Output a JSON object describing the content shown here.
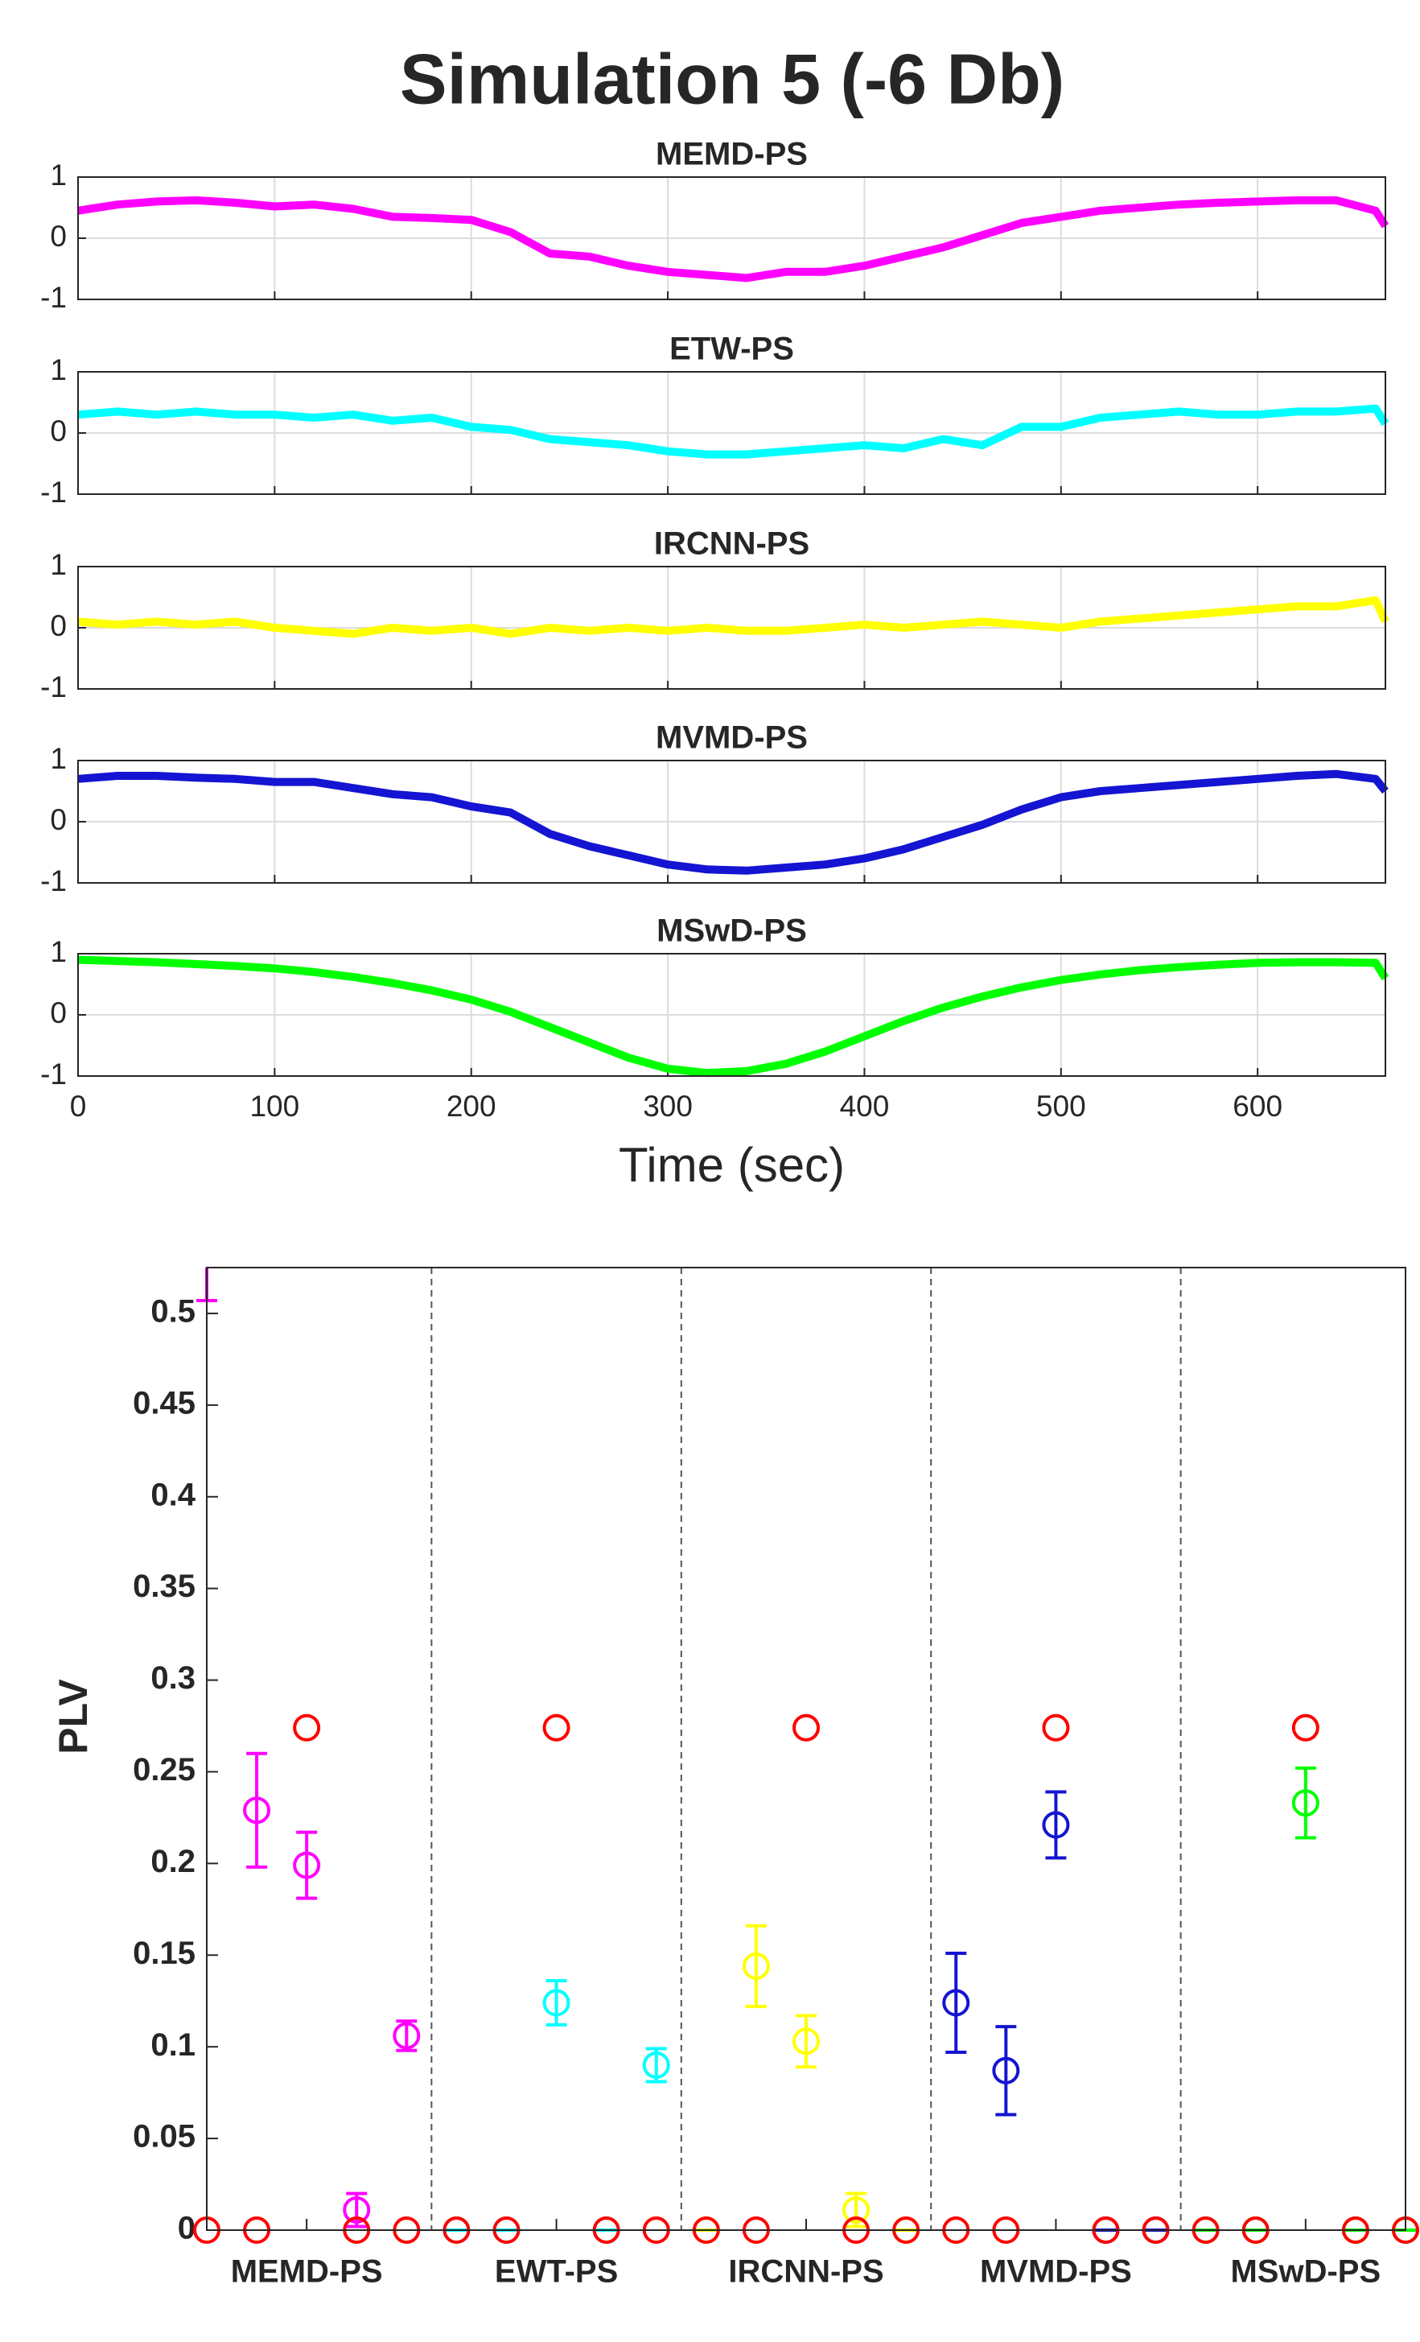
{
  "title": "Simulation 5 (-6 Db)",
  "chart_data": [
    {
      "type": "line",
      "title": "MEMD-PS",
      "xlim": [
        0,
        665
      ],
      "xticks": [
        0,
        100,
        200,
        300,
        400,
        500,
        600
      ],
      "ylim": [
        -1,
        1
      ],
      "yticks": [
        -1,
        0,
        1
      ],
      "grid": true,
      "x": [
        0,
        20,
        40,
        60,
        80,
        100,
        120,
        140,
        160,
        180,
        200,
        220,
        240,
        260,
        280,
        300,
        320,
        340,
        360,
        380,
        400,
        420,
        440,
        460,
        480,
        500,
        520,
        540,
        560,
        580,
        600,
        620,
        640,
        660,
        665
      ],
      "series": [
        {
          "color": "#ff00ff",
          "values": [
            0.45,
            0.55,
            0.6,
            0.62,
            0.58,
            0.52,
            0.55,
            0.48,
            0.35,
            0.33,
            0.3,
            0.1,
            -0.25,
            -0.3,
            -0.45,
            -0.55,
            -0.6,
            -0.65,
            -0.55,
            -0.55,
            -0.45,
            -0.3,
            -0.15,
            0.05,
            0.25,
            0.35,
            0.45,
            0.5,
            0.55,
            0.58,
            0.6,
            0.62,
            0.62,
            0.45,
            0.2
          ]
        }
      ]
    },
    {
      "type": "line",
      "title": "ETW-PS",
      "xlim": [
        0,
        665
      ],
      "xticks": [
        0,
        100,
        200,
        300,
        400,
        500,
        600
      ],
      "ylim": [
        -1,
        1
      ],
      "yticks": [
        -1,
        0,
        1
      ],
      "grid": true,
      "x": [
        0,
        20,
        40,
        60,
        80,
        100,
        120,
        140,
        160,
        180,
        200,
        220,
        240,
        260,
        280,
        300,
        320,
        340,
        360,
        380,
        400,
        420,
        440,
        460,
        480,
        500,
        520,
        540,
        560,
        580,
        600,
        620,
        640,
        660,
        665
      ],
      "series": [
        {
          "color": "#00ffff",
          "values": [
            0.3,
            0.35,
            0.3,
            0.35,
            0.3,
            0.3,
            0.25,
            0.3,
            0.2,
            0.25,
            0.1,
            0.05,
            -0.1,
            -0.15,
            -0.2,
            -0.3,
            -0.35,
            -0.35,
            -0.3,
            -0.25,
            -0.2,
            -0.25,
            -0.1,
            -0.2,
            0.1,
            0.1,
            0.25,
            0.3,
            0.35,
            0.3,
            0.3,
            0.35,
            0.35,
            0.4,
            0.15
          ]
        }
      ]
    },
    {
      "type": "line",
      "title": "IRCNN-PS",
      "xlim": [
        0,
        665
      ],
      "xticks": [
        0,
        100,
        200,
        300,
        400,
        500,
        600
      ],
      "ylim": [
        -1,
        1
      ],
      "yticks": [
        -1,
        0,
        1
      ],
      "grid": true,
      "x": [
        0,
        20,
        40,
        60,
        80,
        100,
        120,
        140,
        160,
        180,
        200,
        220,
        240,
        260,
        280,
        300,
        320,
        340,
        360,
        380,
        400,
        420,
        440,
        460,
        480,
        500,
        520,
        540,
        560,
        580,
        600,
        620,
        640,
        660,
        665
      ],
      "series": [
        {
          "color": "#ffff00",
          "values": [
            0.1,
            0.05,
            0.1,
            0.05,
            0.1,
            0.0,
            -0.05,
            -0.1,
            0.0,
            -0.05,
            0.0,
            -0.1,
            0.0,
            -0.05,
            0.0,
            -0.05,
            0.0,
            -0.05,
            -0.05,
            0.0,
            0.05,
            0.0,
            0.05,
            0.1,
            0.05,
            0.0,
            0.1,
            0.15,
            0.2,
            0.25,
            0.3,
            0.35,
            0.35,
            0.45,
            0.1
          ]
        }
      ]
    },
    {
      "type": "line",
      "title": "MVMD-PS",
      "xlim": [
        0,
        665
      ],
      "xticks": [
        0,
        100,
        200,
        300,
        400,
        500,
        600
      ],
      "ylim": [
        -1,
        1
      ],
      "yticks": [
        -1,
        0,
        1
      ],
      "grid": true,
      "x": [
        0,
        20,
        40,
        60,
        80,
        100,
        120,
        140,
        160,
        180,
        200,
        220,
        240,
        260,
        280,
        300,
        320,
        340,
        360,
        380,
        400,
        420,
        440,
        460,
        480,
        500,
        520,
        540,
        560,
        580,
        600,
        620,
        640,
        660,
        665
      ],
      "series": [
        {
          "color": "#1414d2",
          "values": [
            0.7,
            0.75,
            0.75,
            0.72,
            0.7,
            0.65,
            0.65,
            0.55,
            0.45,
            0.4,
            0.25,
            0.15,
            -0.2,
            -0.4,
            -0.55,
            -0.7,
            -0.78,
            -0.8,
            -0.75,
            -0.7,
            -0.6,
            -0.45,
            -0.25,
            -0.05,
            0.2,
            0.4,
            0.5,
            0.55,
            0.6,
            0.65,
            0.7,
            0.75,
            0.78,
            0.7,
            0.5
          ]
        }
      ]
    },
    {
      "type": "line",
      "title": "MSwD-PS",
      "xlabel": "Time (sec)",
      "xlim": [
        0,
        665
      ],
      "xticks": [
        0,
        100,
        200,
        300,
        400,
        500,
        600
      ],
      "ylim": [
        -1,
        1
      ],
      "yticks": [
        -1,
        0,
        1
      ],
      "grid": true,
      "x": [
        0,
        20,
        40,
        60,
        80,
        100,
        120,
        140,
        160,
        180,
        200,
        220,
        240,
        260,
        280,
        300,
        320,
        340,
        360,
        380,
        400,
        420,
        440,
        460,
        480,
        500,
        520,
        540,
        560,
        580,
        600,
        620,
        640,
        660,
        665
      ],
      "series": [
        {
          "color": "#00ff00",
          "values": [
            0.9,
            0.88,
            0.86,
            0.83,
            0.8,
            0.76,
            0.7,
            0.62,
            0.52,
            0.4,
            0.25,
            0.05,
            -0.2,
            -0.45,
            -0.7,
            -0.88,
            -0.95,
            -0.92,
            -0.8,
            -0.6,
            -0.35,
            -0.1,
            0.12,
            0.3,
            0.45,
            0.57,
            0.66,
            0.73,
            0.78,
            0.82,
            0.85,
            0.86,
            0.86,
            0.85,
            0.6
          ]
        }
      ]
    },
    {
      "type": "errorbar",
      "ylabel": "PLV",
      "xlim": [
        1,
        25
      ],
      "ylim": [
        0,
        0.525
      ],
      "yticks": [
        0,
        0.05,
        0.1,
        0.15,
        0.2,
        0.25,
        0.3,
        0.35,
        0.4,
        0.45,
        0.5
      ],
      "xticks": [
        {
          "value": 3,
          "label": "MEMD-PS"
        },
        {
          "value": 8,
          "label": "EWT-PS"
        },
        {
          "value": 13,
          "label": "IRCNN-PS"
        },
        {
          "value": 18,
          "label": "MVMD-PS"
        },
        {
          "value": 23,
          "label": "MSwD-PS"
        }
      ],
      "series": [
        {
          "color": "#ff00ff",
          "x": [
            1,
            2,
            3,
            4,
            5
          ],
          "values": [
            0.55,
            0.229,
            0.199,
            0.011,
            0.106
          ],
          "errors": [
            0.043,
            0.031,
            0.018,
            0.009,
            0.008
          ]
        },
        {
          "color": "#00ffff",
          "x": [
            6,
            7,
            8,
            9,
            10
          ],
          "values": [
            0,
            0,
            0.124,
            0,
            0.09
          ],
          "errors": [
            0,
            0,
            0.012,
            0,
            0.009
          ]
        },
        {
          "color": "#ffff00",
          "x": [
            11,
            12,
            13,
            14,
            15
          ],
          "values": [
            0,
            0.144,
            0.103,
            0.011,
            0
          ],
          "errors": [
            0,
            0.022,
            0.014,
            0.009,
            0
          ]
        },
        {
          "color": "#1414d2",
          "x": [
            16,
            17,
            18,
            19,
            20
          ],
          "values": [
            0.124,
            0.087,
            0.221,
            0,
            0
          ],
          "errors": [
            0.027,
            0.024,
            0.018,
            0,
            0
          ]
        },
        {
          "color": "#00ff00",
          "x": [
            21,
            22,
            23,
            24,
            25
          ],
          "values": [
            0,
            0,
            0.233,
            0,
            0
          ],
          "errors": [
            0,
            0,
            0.019,
            0,
            0
          ]
        },
        {
          "color": "#ff0000",
          "x": [
            1,
            2,
            3,
            4,
            5,
            6,
            7,
            8,
            9,
            10,
            11,
            12,
            13,
            14,
            15,
            16,
            17,
            18,
            19,
            20,
            21,
            22,
            23,
            24,
            25
          ],
          "values": [
            0,
            0,
            0.274,
            0,
            0,
            0,
            0,
            0.274,
            0,
            0,
            0,
            0,
            0.274,
            0,
            0,
            0,
            0,
            0.274,
            0,
            0,
            0,
            0,
            0.274,
            0,
            0
          ]
        }
      ]
    }
  ]
}
